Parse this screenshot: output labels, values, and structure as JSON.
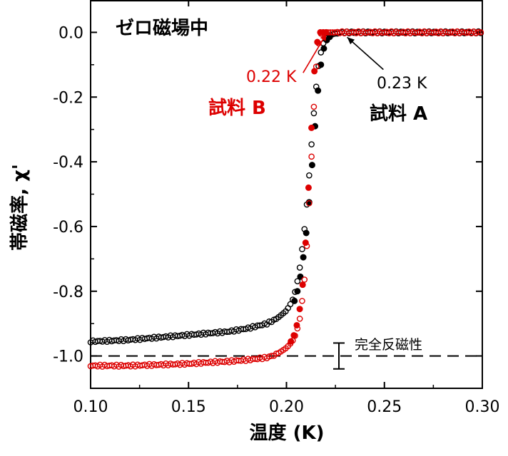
{
  "chart_data": {
    "type": "scatter",
    "title": "",
    "xlabel": "温度 (K)",
    "ylabel": "帯磁率, χ'",
    "xlim": [
      0.1,
      0.3
    ],
    "ylim": [
      -1.1,
      0.1
    ],
    "xticks": [
      "0.10",
      "0.15",
      "0.20",
      "0.25",
      "0.30"
    ],
    "yticks": [
      "0.0",
      "-0.2",
      "-0.4",
      "-0.6",
      "-0.8",
      "-1.0"
    ],
    "grid": false,
    "legend": "none",
    "colors": {
      "sample_A": "#000000",
      "sample_B": "#dd0000",
      "frame": "#000000"
    },
    "series": [
      {
        "name": "試料 A",
        "color": "#000000",
        "x": [
          0.1,
          0.11,
          0.12,
          0.13,
          0.14,
          0.15,
          0.16,
          0.17,
          0.18,
          0.19,
          0.195,
          0.2,
          0.203,
          0.205,
          0.207,
          0.209,
          0.21,
          0.211,
          0.212,
          0.213,
          0.214,
          0.215,
          0.216,
          0.217,
          0.218,
          0.219,
          0.22,
          0.222,
          0.224,
          0.226,
          0.228,
          0.23,
          0.235,
          0.24,
          0.25,
          0.26,
          0.27,
          0.28,
          0.29,
          0.3
        ],
        "y": [
          -0.955,
          -0.953,
          -0.95,
          -0.945,
          -0.94,
          -0.935,
          -0.93,
          -0.925,
          -0.915,
          -0.9,
          -0.885,
          -0.86,
          -0.83,
          -0.79,
          -0.72,
          -0.62,
          -0.56,
          -0.49,
          -0.41,
          -0.33,
          -0.25,
          -0.18,
          -0.12,
          -0.08,
          -0.05,
          -0.03,
          -0.018,
          -0.01,
          -0.005,
          -0.002,
          0.0,
          0.0,
          0.0,
          0.0,
          0.0,
          0.0,
          0.0,
          0.0,
          0.0,
          0.0
        ],
        "transition_label": "0.23 K"
      },
      {
        "name": "試料 B",
        "color": "#dd0000",
        "x": [
          0.1,
          0.11,
          0.12,
          0.13,
          0.14,
          0.15,
          0.16,
          0.17,
          0.18,
          0.19,
          0.195,
          0.2,
          0.203,
          0.205,
          0.207,
          0.209,
          0.21,
          0.211,
          0.212,
          0.213,
          0.214,
          0.215,
          0.216,
          0.217,
          0.218,
          0.219,
          0.22,
          0.222,
          0.225,
          0.23,
          0.24,
          0.25,
          0.26,
          0.27,
          0.28,
          0.29,
          0.3
        ],
        "y": [
          -1.03,
          -1.03,
          -1.03,
          -1.028,
          -1.026,
          -1.024,
          -1.02,
          -1.017,
          -1.012,
          -1.005,
          -0.995,
          -0.975,
          -0.955,
          -0.93,
          -0.88,
          -0.78,
          -0.7,
          -0.6,
          -0.48,
          -0.36,
          -0.23,
          -0.12,
          -0.05,
          -0.01,
          0.0,
          0.0,
          0.0,
          0.0,
          0.0,
          0.0,
          0.0,
          0.0,
          0.0,
          0.0,
          0.0,
          0.0,
          0.0
        ],
        "transition_label": "0.22 K"
      }
    ],
    "annotations": {
      "zero_field": "ゼロ磁場中",
      "perfect_diamagnetism": "完全反磁性",
      "perfect_diamagnetism_value": -1.0,
      "error_bar_center": -1.0,
      "error_bar_halfwidth": 0.04,
      "label_A_temp": "0.23 K",
      "label_A_name": "試料 A",
      "label_B_temp": "0.22 K",
      "label_B_name": "試料 B"
    }
  }
}
